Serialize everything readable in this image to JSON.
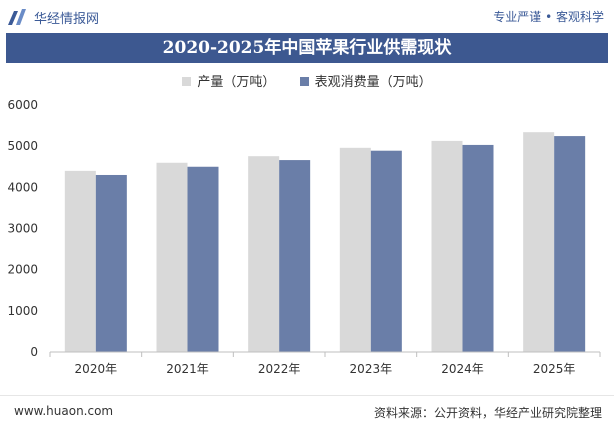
{
  "header": {
    "logo_text": "华经情报网",
    "tagline": "专业严谨 • 客观科学"
  },
  "chart_data": {
    "type": "bar",
    "title": "2020-2025年中国苹果行业供需现状",
    "categories": [
      "2020年",
      "2021年",
      "2022年",
      "2023年",
      "2024年",
      "2025年"
    ],
    "series": [
      {
        "name": "产量（万吨）",
        "color": "#d9d9d9",
        "values": [
          4400,
          4597,
          4757,
          4960,
          5128,
          5340
        ]
      },
      {
        "name": "表观消费量（万吨）",
        "color": "#6a7ea8",
        "values": [
          4300,
          4500,
          4662,
          4890,
          5030,
          5245
        ]
      }
    ],
    "yticks": [
      0,
      1000,
      2000,
      3000,
      4000,
      5000,
      6000
    ],
    "ylim": [
      0,
      6000
    ],
    "grid": false,
    "legend_position": "top-center"
  },
  "footer": {
    "url": "www.huaon.com",
    "source": "资料来源：公开资料，华经产业研究院整理"
  },
  "colors": {
    "title_bar": "#3d5890",
    "brand": "#3b5a97",
    "axis": "#bfbfbf"
  }
}
